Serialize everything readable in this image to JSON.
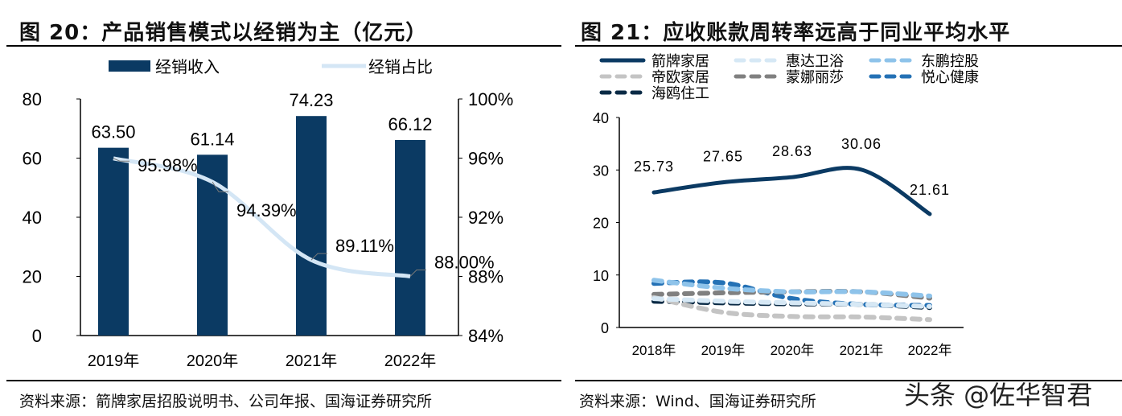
{
  "left": {
    "title": "图 20：产品销售模式以经销为主（亿元）",
    "source": "资料来源：箭牌家居招股说明书、公司年报、国海证券研究所"
  },
  "right": {
    "title": "图 21：应收账款周转率远高于同业平均水平",
    "source": "资料来源：Wind、国海证券研究所"
  },
  "watermark": "头条 @佐华智君",
  "chart_data": [
    {
      "type": "bar+line",
      "categories": [
        "2019年",
        "2020年",
        "2021年",
        "2022年"
      ],
      "series": [
        {
          "name": "经销收入",
          "type": "bar",
          "axis": "left",
          "values": [
            63.5,
            61.14,
            74.23,
            66.12
          ],
          "labels": [
            "63.50",
            "61.14",
            "74.23",
            "66.12"
          ],
          "color": "#0b3a63"
        },
        {
          "name": "经销占比",
          "type": "line",
          "axis": "right",
          "values": [
            95.98,
            94.39,
            89.11,
            88.0
          ],
          "labels": [
            "95.98%",
            "94.39%",
            "89.11%",
            "88.00%"
          ],
          "color": "#d4e6f5"
        }
      ],
      "ylim": [
        0,
        80
      ],
      "yticks": [
        "0",
        "20",
        "40",
        "60",
        "80"
      ],
      "y2lim": [
        84,
        100
      ],
      "y2ticks": [
        "84%",
        "88%",
        "92%",
        "96%",
        "100%"
      ],
      "legend": "top",
      "grid": false
    },
    {
      "type": "line",
      "categories": [
        "2018年",
        "2019年",
        "2020年",
        "2021年",
        "2022年"
      ],
      "series": [
        {
          "name": "箭牌家居",
          "values": [
            25.73,
            27.65,
            28.63,
            30.06,
            21.61
          ],
          "labels": [
            "25.73",
            "27.65",
            "28.63",
            "30.06",
            "21.61"
          ],
          "color": "#0b3a63",
          "dash": false
        },
        {
          "name": "惠达卫浴",
          "values": [
            5.5,
            5.0,
            4.7,
            4.4,
            4.0
          ],
          "color": "#d6e8f5",
          "dash": true
        },
        {
          "name": "东鹏控股",
          "values": [
            9.0,
            7.5,
            6.8,
            6.8,
            6.0
          ],
          "color": "#8ec3ea",
          "dash": true
        },
        {
          "name": "帝欧家居",
          "values": [
            5.7,
            2.9,
            2.1,
            2.0,
            1.5
          ],
          "color": "#c4c4c4",
          "dash": true
        },
        {
          "name": "蒙娜丽莎",
          "values": [
            6.3,
            6.6,
            6.8,
            6.8,
            5.6
          ],
          "color": "#808080",
          "dash": true
        },
        {
          "name": "悦心健康",
          "values": [
            8.4,
            8.5,
            5.5,
            4.4,
            4.2
          ],
          "color": "#2471b5",
          "dash": true
        },
        {
          "name": "海鸥住工",
          "values": [
            5.0,
            4.7,
            4.5,
            4.4,
            3.8
          ],
          "color": "#0a2a45",
          "dash": true
        }
      ],
      "ylim": [
        0,
        40
      ],
      "yticks": [
        "0",
        "10",
        "20",
        "30",
        "40"
      ],
      "legend": "top",
      "grid": false
    }
  ]
}
